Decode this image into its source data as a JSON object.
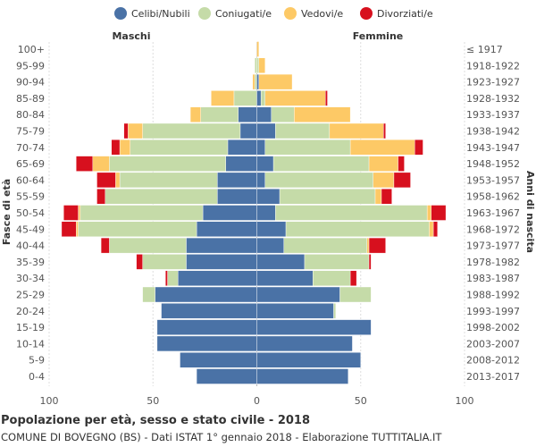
{
  "chart_data": {
    "type": "bar",
    "orientation": "horizontal-population-pyramid",
    "title": "Popolazione per età, sesso e stato civile - 2018",
    "subtitle": "COMUNE DI BOVEGNO (BS) - Dati ISTAT 1° gennaio 2018 - Elaborazione TUTTITALIA.IT",
    "left_label": "Maschi",
    "right_label": "Femmine",
    "ylabel_left": "Fasce di età",
    "ylabel_right": "Anni di nascita",
    "xlim": [
      -100,
      100
    ],
    "xticks": [
      -100,
      -50,
      0,
      50,
      100
    ],
    "xtick_labels": [
      "100",
      "50",
      "0",
      "50",
      "100"
    ],
    "legend": [
      {
        "name": "Celibi/Nubili",
        "color": "#4a72a6"
      },
      {
        "name": "Coniugati/e",
        "color": "#c5dba8"
      },
      {
        "name": "Vedovi/e",
        "color": "#fdc966"
      },
      {
        "name": "Divorziati/e",
        "color": "#d7101e"
      }
    ],
    "age_groups": [
      "100+",
      "95-99",
      "90-94",
      "85-89",
      "80-84",
      "75-79",
      "70-74",
      "65-69",
      "60-64",
      "55-59",
      "50-54",
      "45-49",
      "40-44",
      "35-39",
      "30-34",
      "25-29",
      "20-24",
      "15-19",
      "10-14",
      "5-9",
      "0-4"
    ],
    "birth_years": [
      "≤ 1917",
      "1918-1922",
      "1923-1927",
      "1928-1932",
      "1933-1937",
      "1938-1942",
      "1943-1947",
      "1948-1952",
      "1953-1957",
      "1958-1962",
      "1963-1967",
      "1968-1972",
      "1973-1977",
      "1978-1982",
      "1983-1987",
      "1988-1992",
      "1993-1997",
      "1998-2002",
      "2003-2007",
      "2008-2012",
      "2013-2017"
    ],
    "males": {
      "celibi": [
        0,
        0,
        0,
        0,
        9,
        8,
        14,
        15,
        19,
        19,
        26,
        29,
        34,
        34,
        38,
        49,
        46,
        48,
        48,
        37,
        29
      ],
      "coniugati": [
        0,
        1,
        1,
        11,
        18,
        47,
        47,
        56,
        47,
        54,
        59,
        57,
        37,
        21,
        5,
        6,
        0,
        0,
        0,
        0,
        0
      ],
      "vedovi": [
        0,
        0,
        1,
        11,
        5,
        7,
        5,
        8,
        2,
        0,
        1,
        1,
        0,
        0,
        0,
        0,
        0,
        0,
        0,
        0,
        0
      ],
      "divorziati": [
        0,
        0,
        0,
        0,
        0,
        2,
        4,
        8,
        9,
        4,
        7,
        7,
        4,
        3,
        1,
        0,
        0,
        0,
        0,
        0,
        0
      ]
    },
    "females": {
      "nubili": [
        0,
        0,
        1,
        2,
        7,
        9,
        4,
        8,
        4,
        11,
        9,
        14,
        13,
        23,
        27,
        40,
        37,
        55,
        46,
        50,
        44
      ],
      "coniugate": [
        0,
        1,
        0,
        2,
        11,
        26,
        41,
        46,
        52,
        46,
        73,
        69,
        40,
        31,
        18,
        15,
        1,
        0,
        0,
        0,
        0
      ],
      "vedove": [
        1,
        3,
        16,
        29,
        27,
        26,
        31,
        14,
        10,
        3,
        2,
        2,
        1,
        0,
        0,
        0,
        0,
        0,
        0,
        0,
        0
      ],
      "divorziate": [
        0,
        0,
        0,
        1,
        0,
        1,
        4,
        3,
        8,
        5,
        7,
        2,
        8,
        1,
        3,
        0,
        0,
        0,
        0,
        0,
        0
      ]
    }
  }
}
